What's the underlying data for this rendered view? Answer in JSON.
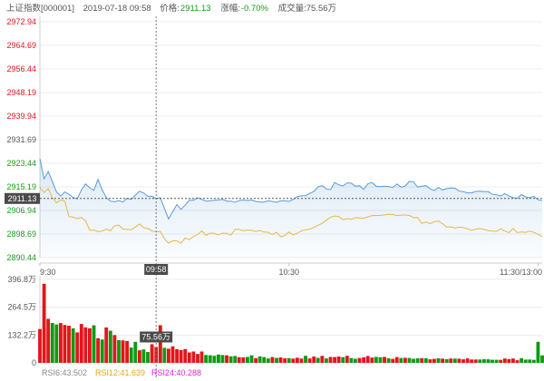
{
  "header": {
    "name": "上证指数[000001]",
    "datetime": "2019-07-18 09:58",
    "price_label": "价格:",
    "price": "2911.13",
    "change_label": "涨幅:",
    "change": "-0.70%",
    "volume_label": "成交量:",
    "volume": "75.56万"
  },
  "colors": {
    "price_line": "#5b9bd5",
    "avg_line": "#e6b84a",
    "up": "#e0171b",
    "down": "#119911",
    "rise_text": "#e0171b",
    "fall_text": "#1a9a1a",
    "rsi6": "#888888",
    "rsi12": "#f0a020",
    "rsi24": "#e020e0"
  },
  "chart_data": {
    "type": "line",
    "y_ticks_rise": [
      "2972.94",
      "2964.69",
      "2956.44",
      "2948.19",
      "2939.94"
    ],
    "y_ticks_mid": [
      "2931.69"
    ],
    "y_ticks_fall": [
      "2923.44",
      "2915.19",
      "2906.94",
      "2898.69",
      "2890.44"
    ],
    "ylim": [
      2890.44,
      2972.94
    ],
    "prev_close": 2931.69,
    "x_ticks": [
      "9:30",
      "10:30",
      "11:30/13:00"
    ],
    "x_tick_minutes": [
      0,
      60,
      120
    ],
    "x_range_minutes": [
      0,
      121
    ],
    "crosshair": {
      "time": "09:58",
      "minute": 28,
      "price": "2911.13",
      "volume": "75.56万"
    },
    "series": [
      {
        "role": "price",
        "x": [
          0,
          1,
          2,
          3,
          4,
          5,
          6,
          7,
          8,
          9,
          10,
          11,
          12,
          13,
          14,
          15,
          16,
          17,
          18,
          19,
          20,
          21,
          22,
          23,
          24,
          25,
          26,
          27,
          28,
          29,
          30,
          31,
          32,
          33,
          34,
          35,
          36,
          37,
          38,
          39,
          40,
          41,
          42,
          43,
          44,
          45,
          46,
          47,
          48,
          49,
          50,
          51,
          52,
          53,
          54,
          55,
          56,
          57,
          58,
          59,
          60,
          61,
          62,
          63,
          64,
          65,
          66,
          67,
          68,
          69,
          70,
          71,
          72,
          73,
          74,
          75,
          76,
          77,
          78,
          79,
          80,
          81,
          82,
          83,
          84,
          85,
          86,
          87,
          88,
          89,
          90,
          91,
          92,
          93,
          94,
          95,
          96,
          97,
          98,
          99,
          100,
          101,
          102,
          103,
          104,
          105,
          106,
          107,
          108,
          109,
          110,
          111,
          112,
          113,
          114,
          115,
          116,
          117,
          118,
          119,
          120,
          121
        ],
        "values": [
          2925.1,
          2918.0,
          2920.6,
          2917.1,
          2913.4,
          2912.0,
          2913.4,
          2912.6,
          2911.5,
          2911.0,
          2914.1,
          2916.2,
          2914.9,
          2914.0,
          2917.8,
          2914.1,
          2911.4,
          2910.2,
          2910.0,
          2910.4,
          2909.9,
          2911.2,
          2910.8,
          2912.3,
          2913.7,
          2913.0,
          2911.9,
          2911.9,
          2911.13,
          2911.4,
          2907.6,
          2904.0,
          2906.5,
          2909.0,
          2907.3,
          2908.8,
          2910.5,
          2910.5,
          2911.4,
          2910.8,
          2910.2,
          2910.3,
          2910.5,
          2910.6,
          2910.8,
          2910.2,
          2910.2,
          2909.8,
          2910.4,
          2910.6,
          2910.4,
          2910.6,
          2910.1,
          2909.9,
          2909.9,
          2910.3,
          2910.1,
          2909.8,
          2910.3,
          2910.3,
          2910.1,
          2910.8,
          2911.8,
          2912.1,
          2912.1,
          2912.9,
          2913.6,
          2915.2,
          2915.6,
          2914.5,
          2914.2,
          2916.7,
          2915.9,
          2915.5,
          2916.6,
          2916.5,
          2915.4,
          2915.6,
          2914.3,
          2916.3,
          2916.7,
          2915.4,
          2915.3,
          2915.4,
          2915.3,
          2915.0,
          2916.2,
          2915.1,
          2915.5,
          2917.1,
          2917.0,
          2915.1,
          2915.4,
          2915.6,
          2914.5,
          2913.9,
          2915.0,
          2914.1,
          2914.6,
          2914.8,
          2914.7,
          2913.7,
          2913.5,
          2913.1,
          2913.1,
          2913.6,
          2913.7,
          2913.5,
          2913.5,
          2912.6,
          2912.4,
          2912.0,
          2912.8,
          2912.0,
          2911.4,
          2911.2,
          2912.5,
          2911.7,
          2911.4,
          2911.9,
          2910.7,
          2910.4
        ]
      },
      {
        "role": "average",
        "x": [
          0,
          1,
          2,
          3,
          4,
          5,
          6,
          7,
          8,
          9,
          10,
          11,
          12,
          13,
          14,
          15,
          16,
          17,
          18,
          19,
          20,
          21,
          22,
          23,
          24,
          25,
          26,
          27,
          28,
          29,
          30,
          31,
          32,
          33,
          34,
          35,
          36,
          37,
          38,
          39,
          40,
          41,
          42,
          43,
          44,
          45,
          46,
          47,
          48,
          49,
          50,
          51,
          52,
          53,
          54,
          55,
          56,
          57,
          58,
          59,
          60,
          61,
          62,
          63,
          64,
          65,
          66,
          67,
          68,
          69,
          70,
          71,
          72,
          73,
          74,
          75,
          76,
          77,
          78,
          79,
          80,
          81,
          82,
          83,
          84,
          85,
          86,
          87,
          88,
          89,
          90,
          91,
          92,
          93,
          94,
          95,
          96,
          97,
          98,
          99,
          100,
          101,
          102,
          103,
          104,
          105,
          106,
          107,
          108,
          109,
          110,
          111,
          112,
          113,
          114,
          115,
          116,
          117,
          118,
          119,
          120,
          121
        ],
        "values": [
          2915.0,
          2913.2,
          2914.6,
          2911.4,
          2909.6,
          2910.6,
          2910.2,
          2904.8,
          2904.6,
          2904.1,
          2904.5,
          2903.3,
          2900.1,
          2900.1,
          2899.5,
          2899.7,
          2900.4,
          2899.8,
          2901.6,
          2901.8,
          2900.4,
          2900.3,
          2900.2,
          2901.1,
          2902.2,
          2900.9,
          2900.6,
          2899.8,
          2899.4,
          2899.6,
          2897.0,
          2895.5,
          2896.3,
          2896.3,
          2895.5,
          2897.3,
          2896.7,
          2897.9,
          2898.5,
          2899.8,
          2898.2,
          2899.0,
          2898.9,
          2898.4,
          2899.0,
          2898.9,
          2898.3,
          2900.3,
          2900.3,
          2899.8,
          2900.1,
          2900.0,
          2899.6,
          2899.9,
          2899.4,
          2899.3,
          2898.5,
          2899.3,
          2897.7,
          2898.2,
          2899.4,
          2898.4,
          2899.0,
          2899.8,
          2900.2,
          2900.4,
          2901.0,
          2901.8,
          2902.4,
          2903.5,
          2904.6,
          2905.0,
          2904.8,
          2903.7,
          2904.1,
          2903.9,
          2904.4,
          2904.3,
          2904.2,
          2904.7,
          2905.1,
          2905.2,
          2905.2,
          2905.4,
          2905.6,
          2905.5,
          2905.2,
          2905.3,
          2905.4,
          2905.2,
          2904.4,
          2904.5,
          2902.4,
          2902.9,
          2902.3,
          2903.0,
          2903.2,
          2902.3,
          2901.1,
          2901.2,
          2900.8,
          2901.1,
          2900.9,
          2900.5,
          2900.0,
          2900.4,
          2900.6,
          2900.3,
          2899.9,
          2899.7,
          2899.6,
          2900.5,
          2899.7,
          2899.2,
          2900.6,
          2899.2,
          2899.4,
          2899.3,
          2899.7,
          2899.3,
          2898.6,
          2897.8
        ]
      }
    ],
    "volume": {
      "unit": "万",
      "y_ticks": [
        "396.8万",
        "264.5万",
        "132.2万",
        "0"
      ],
      "ylim": [
        0,
        396.8
      ],
      "up_flags": [
        1,
        1,
        1,
        0,
        0,
        1,
        1,
        1,
        0,
        1,
        1,
        1,
        1,
        0,
        1,
        0,
        1,
        0,
        1,
        0,
        1,
        1,
        0,
        0,
        1,
        0,
        0,
        1,
        1,
        1,
        0,
        1,
        1,
        1,
        1,
        1,
        1,
        1,
        1,
        1,
        0,
        0,
        0,
        0,
        0,
        1,
        0,
        0,
        1,
        1,
        0,
        0,
        1,
        0,
        0,
        0,
        1,
        0,
        1,
        1,
        0,
        1,
        1,
        1,
        0,
        1,
        1,
        0,
        1,
        0,
        1,
        1,
        1,
        0,
        1,
        0,
        0,
        1,
        1,
        1,
        1,
        0,
        0,
        1,
        0,
        1,
        1,
        0,
        1,
        0,
        0,
        0,
        1,
        0,
        1,
        1,
        0,
        1,
        0,
        1,
        0,
        1,
        1,
        1,
        1,
        1,
        0,
        0,
        0,
        0,
        0,
        1,
        1,
        1,
        1,
        1,
        0,
        0,
        0,
        0,
        0,
        0
      ],
      "values": [
        160.8,
        376.0,
        209.3,
        189.6,
        182.5,
        189.3,
        180.4,
        176.4,
        163.8,
        144.9,
        185.2,
        168.9,
        164.2,
        178.5,
        117.5,
        111.4,
        168.1,
        152.7,
        132.0,
        108.0,
        106.8,
        104.1,
        73.0,
        100.2,
        60.0,
        64.0,
        51.6,
        88.3,
        75.56,
        179.2,
        71.5,
        67.1,
        78.5,
        65.2,
        61.4,
        65.4,
        49.5,
        53.8,
        42.1,
        54.1,
        37.7,
        36.4,
        33.8,
        39.8,
        37.0,
        35.8,
        31.1,
        32.7,
        27.1,
        26.4,
        28.2,
        35.9,
        22.6,
        30.8,
        27.8,
        20.8,
        27.5,
        23.4,
        25.8,
        21.7,
        22.4,
        20.2,
        24.8,
        20.1,
        33.5,
        21.0,
        30.0,
        23.9,
        33.0,
        21.3,
        28.1,
        27.8,
        30.1,
        27.3,
        33.7,
        23.0,
        19.4,
        23.4,
        26.2,
        32.8,
        25.2,
        28.4,
        26.8,
        28.4,
        21.9,
        18.9,
        27.8,
        23.1,
        24.2,
        23.5,
        19.2,
        21.6,
        22.3,
        22.1,
        16.8,
        19.0,
        21.8,
        20.3,
        17.8,
        20.5,
        20.1,
        20.0,
        16.7,
        21.2,
        15.9,
        15.9,
        16.1,
        17.2,
        17.0,
        14.6,
        14.7,
        14.4,
        20.9,
        17.9,
        20.5,
        12.5,
        22.4,
        15.7,
        15.8,
        14.2,
        100.0,
        35.4
      ]
    },
    "rsi": [
      {
        "name": "RSI6",
        "value": "43.502"
      },
      {
        "name": "RSI12",
        "value": "41.639"
      },
      {
        "name": "RSI24",
        "value": "40.288"
      }
    ]
  }
}
